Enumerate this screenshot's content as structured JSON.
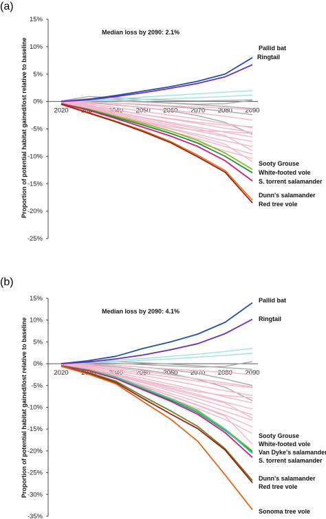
{
  "chart_data": [
    {
      "type": "line",
      "panel": "(a)",
      "annotation": "Median loss by 2090: 2.1%",
      "ylabel": "Proportion of potential habitat gained/lost relative to baseline",
      "x": [
        "2020",
        "2030",
        "2040",
        "2050",
        "2060",
        "2070",
        "2080",
        "2090"
      ],
      "yticks": [
        "15%",
        "10%",
        "5%",
        "0%",
        "-5%",
        "-10%",
        "-15%",
        "-20%",
        "-25%"
      ],
      "ylim": [
        -25,
        15
      ],
      "colors": {
        "gray": "#a8a8a8",
        "pink": "#f4b6c8",
        "cyan": "#9fe3df"
      },
      "series": [
        {
          "name": "Pallid bat",
          "color": "#1f4fa8",
          "values": [
            0,
            0.4,
            1.1,
            1.9,
            2.7,
            3.7,
            5.0,
            8.0
          ]
        },
        {
          "name": "Ringtail",
          "color": "#6a2bc9",
          "values": [
            0,
            0.3,
            0.9,
            1.6,
            2.4,
            3.3,
            4.5,
            6.7
          ]
        },
        {
          "name": "Sooty Grouse",
          "color": "#7fbf1f",
          "values": [
            -0.4,
            -1.4,
            -2.7,
            -4.0,
            -5.4,
            -7.1,
            -9.4,
            -12.4
          ]
        },
        {
          "name": "White-footed vole",
          "color": "#1f8f3a",
          "values": [
            -0.4,
            -1.5,
            -2.9,
            -4.3,
            -5.8,
            -7.6,
            -10.0,
            -13.0
          ]
        },
        {
          "name": "S. torrent salamander",
          "color": "#d6187c",
          "values": [
            -0.4,
            -1.6,
            -3.1,
            -4.7,
            -6.3,
            -8.2,
            -10.8,
            -14.5
          ]
        },
        {
          "name": "Dunn's salamander",
          "color": "#e07a1a",
          "values": [
            -0.5,
            -2.0,
            -3.6,
            -5.3,
            -7.3,
            -9.8,
            -12.6,
            -18.0
          ]
        },
        {
          "name": "Red tree vole",
          "color": "#9c1c12",
          "values": [
            -0.5,
            -2.1,
            -3.7,
            -5.5,
            -7.5,
            -10.1,
            -12.9,
            -18.5
          ]
        }
      ],
      "background_series": [
        {
          "color": "#a8a8a8",
          "values": [
            0.1,
            0.9,
            0.7,
            0.4,
            0.2,
            0.1,
            0.2,
            0.3
          ]
        },
        {
          "color": "#a8a8a8",
          "values": [
            0.1,
            0.5,
            0.4,
            0.0,
            -0.3,
            -0.6,
            -0.9,
            -1.3
          ]
        },
        {
          "color": "#a8a8a8",
          "values": [
            0,
            -0.1,
            -0.3,
            -0.6,
            -0.9,
            -1.3,
            -1.8,
            -2.4
          ]
        },
        {
          "color": "#a8a8a8",
          "values": [
            0,
            -0.2,
            -0.6,
            -1.1,
            -1.7,
            -2.6,
            -3.8,
            -6.0
          ]
        },
        {
          "color": "#a8a8a8",
          "values": [
            0,
            0.1,
            0.1,
            -0.1,
            -0.3,
            -0.5,
            -0.4,
            0.2
          ]
        },
        {
          "color": "#9fe3df",
          "values": [
            0,
            0.2,
            0.5,
            0.8,
            1.1,
            1.4,
            1.7,
            2.0
          ]
        },
        {
          "color": "#9fe3df",
          "values": [
            0,
            0.1,
            0.2,
            0.4,
            0.5,
            0.7,
            0.9,
            1.2
          ]
        },
        {
          "color": "#f4b6c8",
          "values": [
            0,
            -0.1,
            -0.3,
            -0.5,
            -0.8,
            -1.0,
            -1.2,
            -1.5
          ]
        },
        {
          "color": "#f4b6c8",
          "values": [
            -0.1,
            -0.3,
            -0.7,
            -1.1,
            -1.6,
            -2.1,
            -2.7,
            -3.4
          ]
        },
        {
          "color": "#f4b6c8",
          "values": [
            -0.1,
            -0.5,
            -1.1,
            -1.8,
            -2.5,
            -3.2,
            -4.0,
            -4.8
          ]
        },
        {
          "color": "#f4b6c8",
          "values": [
            -0.2,
            -0.7,
            -1.5,
            -2.4,
            -3.2,
            -4.0,
            -4.9,
            -5.6
          ]
        },
        {
          "color": "#f4b6c8",
          "values": [
            -0.2,
            -0.9,
            -1.9,
            -2.9,
            -3.8,
            -4.7,
            -5.6,
            -6.5
          ]
        },
        {
          "color": "#f4b6c8",
          "values": [
            -0.3,
            -1.1,
            -2.2,
            -3.3,
            -4.3,
            -5.4,
            -6.4,
            -7.3
          ]
        },
        {
          "color": "#f4b6c8",
          "values": [
            -0.3,
            -1.3,
            -2.5,
            -3.7,
            -4.9,
            -6.0,
            -7.2,
            -8.2
          ]
        },
        {
          "color": "#f4b6c8",
          "values": [
            -0.3,
            -1.4,
            -2.7,
            -4.0,
            -5.4,
            -6.8,
            -8.2,
            -9.6
          ]
        },
        {
          "color": "#f4b6c8",
          "values": [
            -0.3,
            -1.5,
            -2.9,
            -4.4,
            -5.9,
            -7.5,
            -9.0,
            -10.4
          ]
        },
        {
          "color": "#f4b6c8",
          "values": [
            -0.2,
            -1.2,
            -2.4,
            -3.6,
            -4.6,
            -5.3,
            -5.5,
            -5.8
          ]
        },
        {
          "color": "#f4b6c8",
          "values": [
            -0.2,
            -1.0,
            -2.0,
            -3.0,
            -4.0,
            -5.0,
            -6.2,
            -9.0
          ]
        },
        {
          "color": "#f4b6c8",
          "values": [
            -0.3,
            -1.3,
            -2.6,
            -3.8,
            -5.0,
            -6.3,
            -7.8,
            -11.0
          ]
        },
        {
          "color": "#f4b6c8",
          "values": [
            -0.2,
            -0.8,
            -1.6,
            -2.4,
            -3.1,
            -3.8,
            -4.3,
            -4.6
          ]
        }
      ]
    },
    {
      "type": "line",
      "panel": "(b)",
      "annotation": "Median loss by 2090: 4.1%",
      "ylabel": "Proportion of potential habitat gained/lost relative to baseline",
      "x": [
        "2020",
        "2030",
        "2040",
        "2050",
        "2060",
        "2070",
        "2080",
        "2090"
      ],
      "yticks": [
        "15%",
        "10%",
        "5%",
        "0%",
        "-5%",
        "-10%",
        "-15%",
        "-20%",
        "-25%",
        "-30%",
        "-35%"
      ],
      "ylim": [
        -35,
        15
      ],
      "colors": {
        "gray": "#a8a8a8",
        "pink": "#f4b6c8",
        "cyan": "#9fe3df"
      },
      "series": [
        {
          "name": "Pallid bat",
          "color": "#1f4fa8",
          "values": [
            0,
            0.7,
            1.7,
            3.5,
            5.0,
            6.8,
            9.5,
            14.0
          ]
        },
        {
          "name": "Ringtail",
          "color": "#6a2bc9",
          "values": [
            0,
            0.4,
            1.1,
            2.0,
            3.2,
            4.6,
            6.9,
            10.2
          ]
        },
        {
          "name": "Sooty Grouse",
          "color": "#7fbf1f",
          "values": [
            -0.4,
            -1.4,
            -3.0,
            -5.5,
            -8.0,
            -10.7,
            -15.0,
            -20.0
          ]
        },
        {
          "name": "White-footed vole",
          "color": "#1f8f3a",
          "values": [
            -0.5,
            -1.5,
            -3.2,
            -5.8,
            -8.3,
            -11.2,
            -15.3,
            -20.3
          ]
        },
        {
          "name": "Van Dyke's salamander",
          "color": "#33c9c9",
          "values": [
            -0.5,
            -1.5,
            -3.1,
            -5.6,
            -8.1,
            -11.0,
            -15.1,
            -20.6
          ]
        },
        {
          "name": "S. torrent salamander",
          "color": "#d6187c",
          "values": [
            -0.5,
            -1.6,
            -3.4,
            -6.0,
            -8.6,
            -11.6,
            -15.8,
            -21.5
          ]
        },
        {
          "name": "Dunn's salamander",
          "color": "#6f7f1a",
          "values": [
            -0.6,
            -2.0,
            -4.0,
            -7.5,
            -10.8,
            -14.4,
            -19.5,
            -26.8
          ]
        },
        {
          "name": "Red tree vole",
          "color": "#9c1c12",
          "values": [
            -0.6,
            -2.2,
            -4.3,
            -8.0,
            -11.5,
            -14.9,
            -19.8,
            -27.3
          ]
        },
        {
          "name": "Sonoma tree vole",
          "color": "#e06414",
          "values": [
            -0.6,
            -2.4,
            -4.6,
            -8.7,
            -12.7,
            -17.8,
            -25.5,
            -33.5
          ]
        }
      ],
      "background_series": [
        {
          "color": "#a8a8a8",
          "values": [
            0.1,
            0.6,
            0.5,
            0.2,
            -0.1,
            -0.5,
            -0.9,
            -1.3
          ]
        },
        {
          "color": "#a8a8a8",
          "values": [
            0,
            -0.1,
            -0.4,
            -0.8,
            -1.4,
            -2.2,
            -3.5,
            -5.0
          ]
        },
        {
          "color": "#a8a8a8",
          "values": [
            0,
            -0.2,
            -0.7,
            -1.4,
            -2.3,
            -3.6,
            -5.4,
            -8.5
          ]
        },
        {
          "color": "#a8a8a8",
          "values": [
            0,
            0.2,
            0.1,
            -0.2,
            -0.5,
            -0.8,
            -0.6,
            0.5
          ]
        },
        {
          "color": "#9fe3df",
          "values": [
            0,
            0.4,
            0.8,
            1.2,
            1.7,
            2.2,
            2.8,
            3.5
          ]
        },
        {
          "color": "#9fe3df",
          "values": [
            0,
            0.2,
            0.5,
            0.8,
            1.1,
            1.5,
            1.9,
            2.4
          ]
        },
        {
          "color": "#f4b6c8",
          "values": [
            0,
            -0.1,
            -0.4,
            -0.8,
            -1.2,
            -1.6,
            -2.0,
            -2.5
          ]
        },
        {
          "color": "#f4b6c8",
          "values": [
            -0.1,
            -0.4,
            -1.0,
            -1.7,
            -2.6,
            -3.5,
            -4.4,
            -5.3
          ]
        },
        {
          "color": "#f4b6c8",
          "values": [
            -0.2,
            -0.7,
            -1.6,
            -2.7,
            -3.8,
            -5.0,
            -6.2,
            -7.3
          ]
        },
        {
          "color": "#f4b6c8",
          "values": [
            -0.2,
            -0.9,
            -2.0,
            -3.3,
            -4.7,
            -6.1,
            -7.6,
            -9.0
          ]
        },
        {
          "color": "#f4b6c8",
          "values": [
            -0.3,
            -1.1,
            -2.4,
            -3.9,
            -5.5,
            -7.1,
            -8.8,
            -10.4
          ]
        },
        {
          "color": "#f4b6c8",
          "values": [
            -0.3,
            -1.3,
            -2.7,
            -4.4,
            -6.2,
            -8.0,
            -9.9,
            -11.7
          ]
        },
        {
          "color": "#f4b6c8",
          "values": [
            -0.3,
            -1.4,
            -3.0,
            -4.9,
            -6.8,
            -8.8,
            -10.9,
            -13.0
          ]
        },
        {
          "color": "#f4b6c8",
          "values": [
            -0.4,
            -1.5,
            -3.2,
            -5.2,
            -7.3,
            -9.5,
            -11.8,
            -14.5
          ]
        },
        {
          "color": "#f4b6c8",
          "values": [
            -0.4,
            -1.6,
            -3.4,
            -5.6,
            -7.9,
            -10.3,
            -12.8,
            -16.0
          ]
        },
        {
          "color": "#f4b6c8",
          "values": [
            -0.2,
            -1.1,
            -2.4,
            -3.8,
            -5.2,
            -6.4,
            -7.3,
            -7.8
          ]
        },
        {
          "color": "#f4b6c8",
          "values": [
            -0.3,
            -1.2,
            -2.6,
            -4.2,
            -5.8,
            -7.4,
            -9.0,
            -12.5
          ]
        },
        {
          "color": "#f4b6c8",
          "values": [
            -0.4,
            -1.6,
            -3.3,
            -5.3,
            -7.4,
            -9.6,
            -12.0,
            -18.5
          ]
        },
        {
          "color": "#f4b6c8",
          "values": [
            -0.1,
            -0.6,
            -1.3,
            -2.2,
            -3.1,
            -4.0,
            -4.8,
            -5.5
          ]
        }
      ]
    }
  ]
}
